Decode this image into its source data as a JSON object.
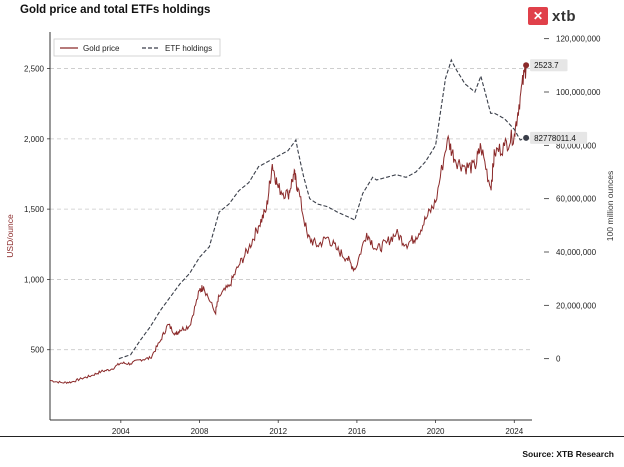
{
  "title": "Gold price and total ETFs holdings",
  "logo": {
    "text": "xtb",
    "icon": "xtb-logo-icon",
    "color": "#e0404a"
  },
  "source": "Source: XTB Research",
  "chart_data": {
    "type": "line",
    "title": "Gold price and total ETFs holdings",
    "ylabel_left": "USD/ounce",
    "ylabel_right": "100 million ounces",
    "xlabel": "",
    "xlim": [
      2000.4,
      2024.9
    ],
    "ylim_left": [
      0,
      2760
    ],
    "ylim_right": [
      -23000000,
      122500000
    ],
    "xticks": [
      2004,
      2008,
      2012,
      2016,
      2020,
      2024
    ],
    "xtick_labels": [
      "2004",
      "2008",
      "2012",
      "2016",
      "2020",
      "2024"
    ],
    "yticks_left": [
      500,
      1000,
      1500,
      2000,
      2500
    ],
    "ytick_labels_left": [
      "500",
      "1,000",
      "1,500",
      "2,000",
      "2,500"
    ],
    "yticks_right": [
      0,
      20000000,
      40000000,
      60000000,
      80000000,
      100000000,
      120000000
    ],
    "ytick_labels_right": [
      "0",
      "20,000,000",
      "40,000,000",
      "60,000,000",
      "80,000,000",
      "100,000,000",
      "120,000,000"
    ],
    "grid": "horizontal-dashed",
    "legend_position": "top-left",
    "series": [
      {
        "name": "Gold price",
        "axis": "left",
        "color": "#8b2a2a",
        "style": "solid",
        "x": [
          2000.4,
          2001.0,
          2001.5,
          2002.0,
          2002.5,
          2003.0,
          2003.5,
          2004.0,
          2004.5,
          2005.0,
          2005.5,
          2006.0,
          2006.4,
          2006.8,
          2007.0,
          2007.5,
          2008.0,
          2008.2,
          2008.8,
          2009.0,
          2009.5,
          2010.0,
          2010.5,
          2011.0,
          2011.4,
          2011.7,
          2012.0,
          2012.5,
          2012.8,
          2013.0,
          2013.5,
          2014.0,
          2014.5,
          2015.0,
          2015.5,
          2015.9,
          2016.5,
          2017.0,
          2017.5,
          2018.0,
          2018.5,
          2019.0,
          2019.5,
          2020.0,
          2020.6,
          2021.0,
          2021.5,
          2022.0,
          2022.3,
          2022.8,
          2023.0,
          2023.5,
          2024.0,
          2024.3,
          2024.6
        ],
        "values": [
          282,
          265,
          270,
          295,
          315,
          345,
          360,
          405,
          400,
          430,
          440,
          560,
          680,
          610,
          640,
          670,
          920,
          950,
          760,
          880,
          950,
          1100,
          1220,
          1380,
          1500,
          1820,
          1650,
          1600,
          1750,
          1650,
          1300,
          1240,
          1300,
          1210,
          1150,
          1070,
          1330,
          1210,
          1260,
          1330,
          1250,
          1300,
          1430,
          1550,
          2000,
          1850,
          1800,
          1800,
          1950,
          1650,
          1900,
          1950,
          2030,
          2300,
          2523.7
        ]
      },
      {
        "name": "ETF holdings",
        "axis": "right",
        "color": "#3a3f4a",
        "style": "dashed",
        "x": [
          2003.9,
          2004.5,
          2005.0,
          2005.5,
          2006.0,
          2006.5,
          2007.0,
          2007.5,
          2008.0,
          2008.5,
          2009.0,
          2009.5,
          2010.0,
          2010.5,
          2011.0,
          2011.5,
          2012.0,
          2012.5,
          2012.9,
          2013.0,
          2013.3,
          2013.6,
          2014.0,
          2014.5,
          2015.0,
          2015.9,
          2016.0,
          2016.3,
          2016.8,
          2017.0,
          2017.5,
          2018.0,
          2018.5,
          2019.0,
          2019.5,
          2020.0,
          2020.5,
          2020.8,
          2021.0,
          2021.5,
          2022.0,
          2022.3,
          2022.8,
          2023.0,
          2023.5,
          2024.0,
          2024.3,
          2024.6
        ],
        "values": [
          0,
          1500000,
          7000000,
          12000000,
          18000000,
          23000000,
          28000000,
          32000000,
          38000000,
          42000000,
          55000000,
          58000000,
          63000000,
          66000000,
          72000000,
          74000000,
          76000000,
          78000000,
          82000000,
          78000000,
          68000000,
          60000000,
          58000000,
          57000000,
          55000000,
          52000000,
          55000000,
          62000000,
          68000000,
          67000000,
          68000000,
          69000000,
          68000000,
          70000000,
          74000000,
          80000000,
          105000000,
          112000000,
          109000000,
          103000000,
          100000000,
          106000000,
          92000000,
          92000000,
          90000000,
          86000000,
          82000000,
          82778011.4
        ]
      }
    ],
    "annotations": [
      {
        "series": "Gold price",
        "label": "2523.7"
      },
      {
        "series": "ETF holdings",
        "label": "82778011.4"
      }
    ]
  }
}
